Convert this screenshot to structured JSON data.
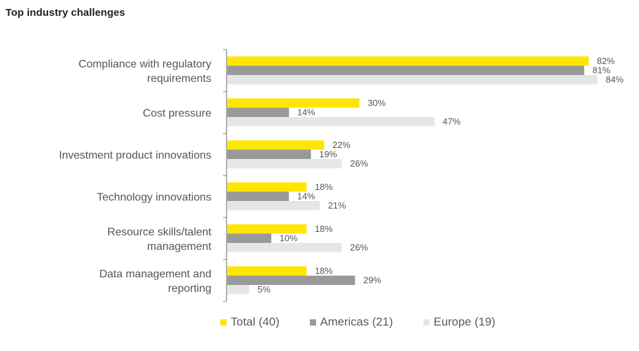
{
  "chart_data": {
    "type": "bar",
    "orientation": "horizontal",
    "title": "Top industry challenges",
    "categories": [
      [
        "Compliance with regulatory",
        "requirements"
      ],
      [
        "Cost pressure"
      ],
      [
        "Investment product innovations"
      ],
      [
        "Technology innovations"
      ],
      [
        "Resource skills/talent",
        "management"
      ],
      [
        "Data management and",
        "reporting"
      ]
    ],
    "series": [
      {
        "name": "Total (40)",
        "color": "#ffe600",
        "values": [
          82,
          30,
          22,
          18,
          18,
          18
        ]
      },
      {
        "name": "Americas (21)",
        "color": "#999999",
        "values": [
          81,
          14,
          19,
          14,
          10,
          29
        ]
      },
      {
        "name": "Europe (19)",
        "color": "#e6e6e6",
        "values": [
          84,
          47,
          26,
          21,
          26,
          5
        ]
      }
    ],
    "value_suffix": "%",
    "xlim": [
      0,
      100
    ],
    "grid": false,
    "legend_position": "bottom"
  }
}
